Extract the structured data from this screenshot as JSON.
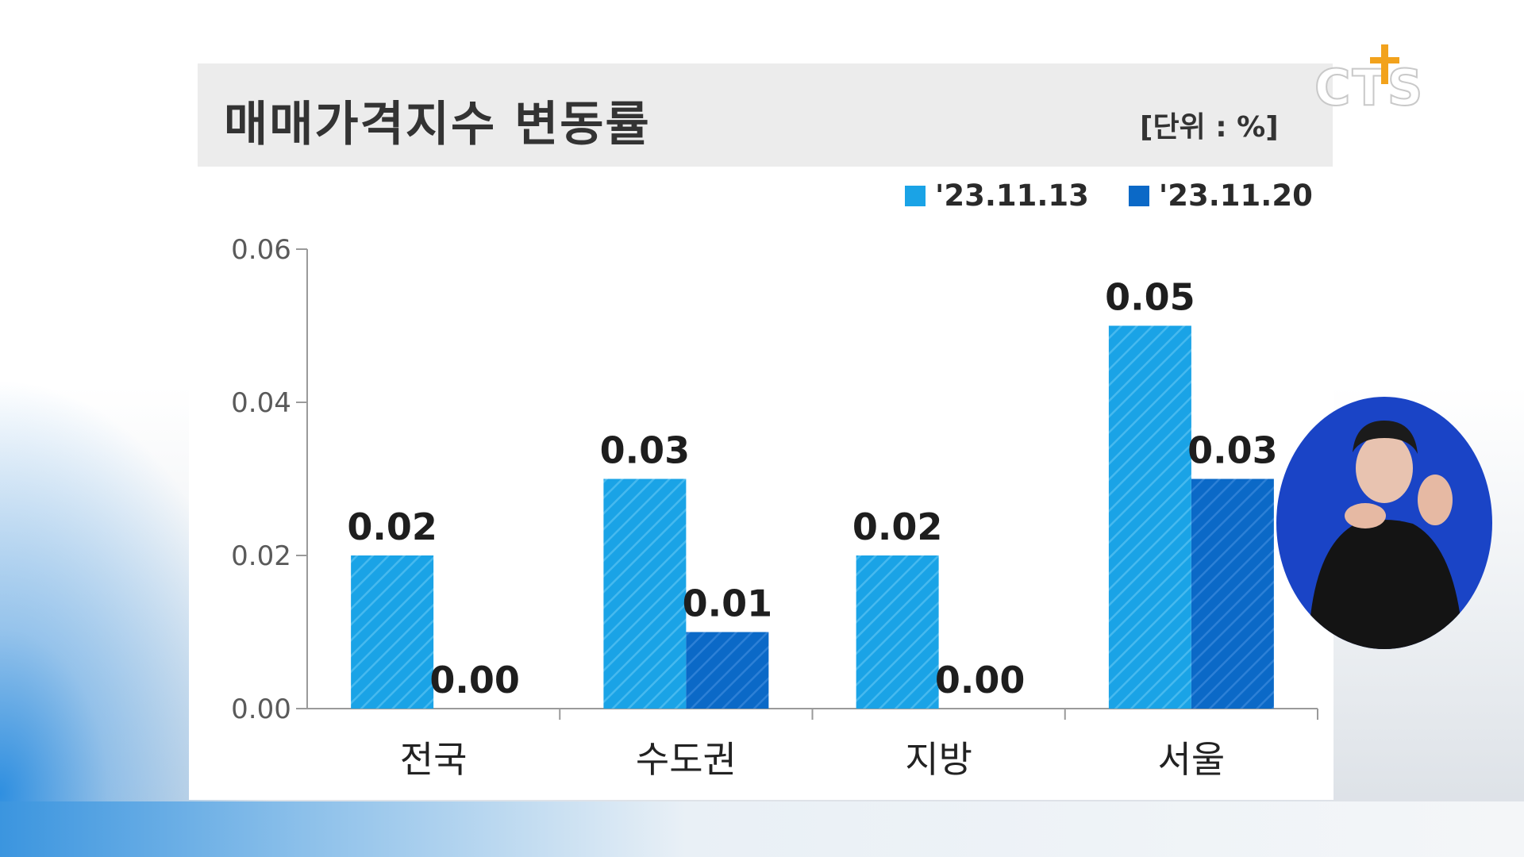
{
  "header": {
    "title": "매매가격지수 변동률",
    "unit": "[단위 : %]"
  },
  "legend": [
    {
      "label": "'23.11.13",
      "color": "#1aa3e6"
    },
    {
      "label": "'23.11.20",
      "color": "#0b69c7"
    }
  ],
  "watermark": {
    "text": "CTS",
    "icon": "cross-icon"
  },
  "colors": {
    "series1": "#1aa3e6",
    "series2": "#0b69c7",
    "title_bg": "#ececec"
  },
  "chart_data": {
    "type": "bar",
    "categories": [
      "전국",
      "수도권",
      "지방",
      "서울"
    ],
    "series": [
      {
        "name": "'23.11.13",
        "values": [
          0.02,
          0.03,
          0.02,
          0.05
        ],
        "labels": [
          "0.02",
          "0.03",
          "0.02",
          "0.05"
        ]
      },
      {
        "name": "'23.11.20",
        "values": [
          0.0,
          0.01,
          0.0,
          0.03
        ],
        "labels": [
          "0.00",
          "0.01",
          "0.00",
          "0.03"
        ]
      }
    ],
    "yticks": [
      "0.00",
      "0.02",
      "0.04",
      "0.06"
    ],
    "ylim": [
      0,
      0.06
    ],
    "title": "매매가격지수 변동률",
    "xlabel": "",
    "ylabel": "",
    "legend_position": "top-right",
    "grid": false
  }
}
